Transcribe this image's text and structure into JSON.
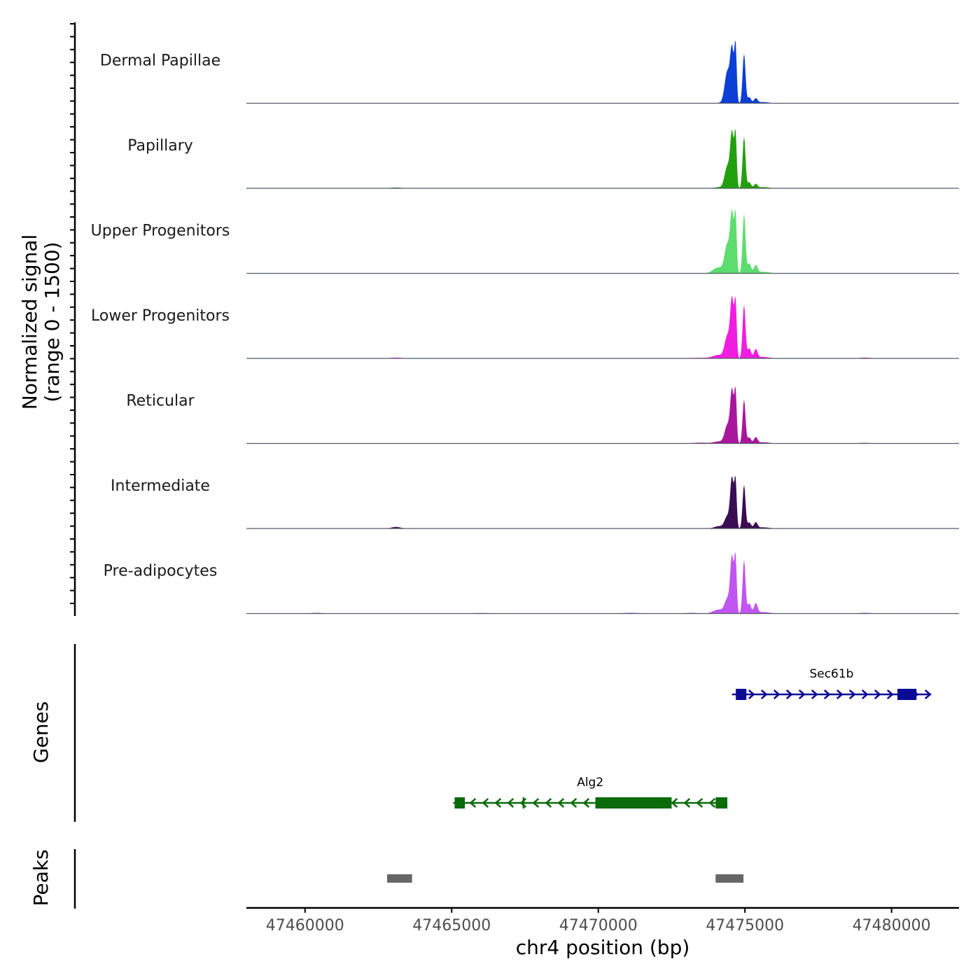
{
  "chart_data": {
    "type": "coverage",
    "chromosome": "chr4",
    "xrange": [
      47458000,
      47482300
    ],
    "xlabel": "chr4 position (bp)",
    "xticks": [
      47460000,
      47465000,
      47470000,
      47475000,
      47480000
    ],
    "xtick_labels": [
      "47460000",
      "47465000",
      "47470000",
      "47475000",
      "47480000"
    ],
    "coverage_ylabel": [
      "Normalized signal",
      "(range 0 - 1500)"
    ],
    "coverage_yrange": [
      0,
      1500
    ],
    "tracks": [
      {
        "name": "Dermal Papillae",
        "color": "#0b3fd6",
        "peaks": [
          [
            47474120,
            10,
            140
          ],
          [
            47474400,
            800,
            90
          ],
          [
            47474560,
            1300,
            60
          ],
          [
            47474680,
            1400,
            40
          ],
          [
            47474970,
            1250,
            50
          ],
          [
            47475150,
            150,
            60
          ],
          [
            47475370,
            120,
            60
          ],
          [
            47475620,
            30,
            180
          ]
        ]
      },
      {
        "name": "Papillary",
        "color": "#23a00e",
        "peaks": [
          [
            47463100,
            20,
            220
          ],
          [
            47474120,
            30,
            160
          ],
          [
            47474400,
            550,
            90
          ],
          [
            47474560,
            1350,
            60
          ],
          [
            47474680,
            1300,
            40
          ],
          [
            47474970,
            1300,
            50
          ],
          [
            47475150,
            150,
            60
          ],
          [
            47475370,
            100,
            60
          ],
          [
            47475620,
            30,
            200
          ]
        ]
      },
      {
        "name": "Upper Progenitors",
        "color": "#5cdd6e",
        "peaks": [
          [
            47474100,
            150,
            180
          ],
          [
            47474400,
            700,
            90
          ],
          [
            47474560,
            1450,
            60
          ],
          [
            47474680,
            1400,
            40
          ],
          [
            47474970,
            1500,
            50
          ],
          [
            47475150,
            250,
            60
          ],
          [
            47475370,
            200,
            60
          ],
          [
            47475620,
            40,
            200
          ]
        ]
      },
      {
        "name": "Lower Progenitors",
        "color": "#f01de0",
        "peaks": [
          [
            47463100,
            20,
            220
          ],
          [
            47473500,
            15,
            500
          ],
          [
            47474100,
            80,
            180
          ],
          [
            47474400,
            550,
            90
          ],
          [
            47474560,
            1450,
            60
          ],
          [
            47474680,
            1350,
            40
          ],
          [
            47474970,
            1350,
            50
          ],
          [
            47475150,
            250,
            60
          ],
          [
            47475370,
            220,
            60
          ],
          [
            47475620,
            40,
            200
          ],
          [
            47479100,
            20,
            200
          ]
        ]
      },
      {
        "name": "Reticular",
        "color": "#a9169e",
        "peaks": [
          [
            47473500,
            20,
            300
          ],
          [
            47474120,
            50,
            160
          ],
          [
            47474400,
            450,
            90
          ],
          [
            47474560,
            1300,
            60
          ],
          [
            47474680,
            1250,
            40
          ],
          [
            47474970,
            1100,
            50
          ],
          [
            47475150,
            150,
            60
          ],
          [
            47475370,
            150,
            60
          ],
          [
            47475620,
            30,
            200
          ],
          [
            47479100,
            15,
            200
          ]
        ]
      },
      {
        "name": "Intermediate",
        "color": "#3a0c52",
        "peaks": [
          [
            47463100,
            40,
            150
          ],
          [
            47474120,
            60,
            160
          ],
          [
            47474400,
            300,
            90
          ],
          [
            47474560,
            1250,
            60
          ],
          [
            47474680,
            1150,
            40
          ],
          [
            47474970,
            1100,
            50
          ],
          [
            47475150,
            150,
            60
          ],
          [
            47475370,
            150,
            60
          ],
          [
            47475620,
            30,
            200
          ]
        ]
      },
      {
        "name": "Pre-adipocytes",
        "color": "#c155f2",
        "peaks": [
          [
            47460400,
            20,
            200
          ],
          [
            47466000,
            15,
            300
          ],
          [
            47471100,
            20,
            300
          ],
          [
            47473200,
            20,
            200
          ],
          [
            47474100,
            100,
            180
          ],
          [
            47474400,
            350,
            90
          ],
          [
            47474560,
            1400,
            60
          ],
          [
            47474680,
            1350,
            40
          ],
          [
            47474970,
            1350,
            50
          ],
          [
            47475150,
            250,
            60
          ],
          [
            47475370,
            250,
            60
          ],
          [
            47475620,
            40,
            200
          ],
          [
            47479100,
            20,
            200
          ]
        ]
      }
    ],
    "genes_ylabel": "Genes",
    "genes": [
      {
        "name": "Sec61b",
        "strand": "+",
        "color": "#0a0a94",
        "start": 47474560,
        "end": 47481350,
        "exons": [
          [
            47474700,
            47475050
          ],
          [
            47480200,
            47480850
          ]
        ],
        "introns_marks": [
          47474720
        ]
      },
      {
        "name": "Alg2",
        "strand": "-",
        "color": "#0a6b0a",
        "start": 47465050,
        "end": 47474400,
        "exons": [
          [
            47465100,
            47465450
          ],
          [
            47469900,
            47472500
          ],
          [
            47474000,
            47474400
          ]
        ],
        "introns_marks": [
          47467450
        ]
      }
    ],
    "peaks_ylabel": "Peaks",
    "peak_regions": [
      [
        47462800,
        47463650
      ],
      [
        47474000,
        47474950
      ]
    ],
    "peak_color": "#666666"
  }
}
